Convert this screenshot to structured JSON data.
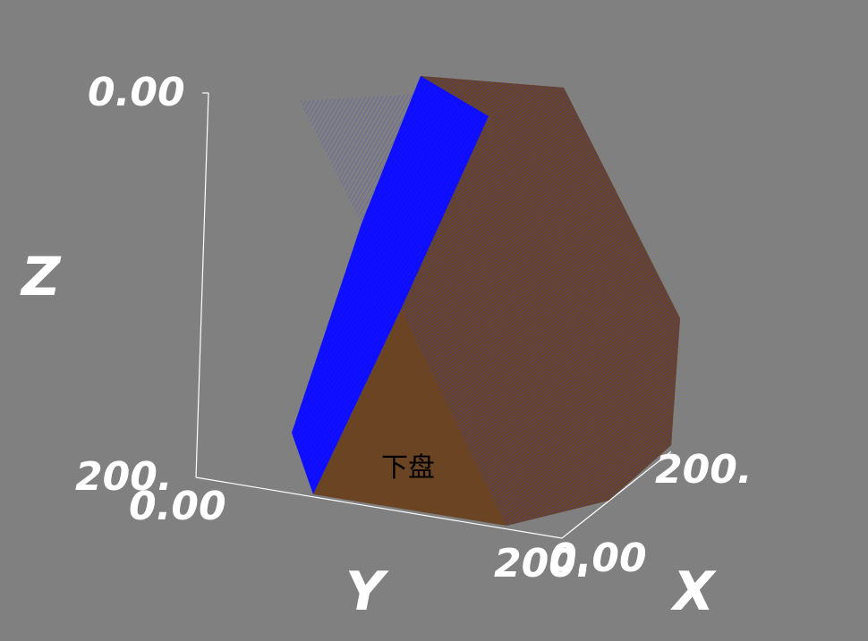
{
  "axes": {
    "z": {
      "title": "Z",
      "top_tick": "0.00",
      "bottom_tick": "200."
    },
    "y": {
      "title": "Y",
      "start_tick": "0.00",
      "end_tick": "200."
    },
    "x": {
      "title": "X",
      "start_tick": "0.00",
      "end_tick": "200."
    }
  },
  "solid": {
    "face_label": "下盘"
  },
  "colors": {
    "background": "#808080",
    "axis": "#ffffff",
    "solid_fill": "#6b4423",
    "mesh_blue": "#0000ff",
    "mesh_purple": "#5a3878",
    "label": "#000000"
  }
}
